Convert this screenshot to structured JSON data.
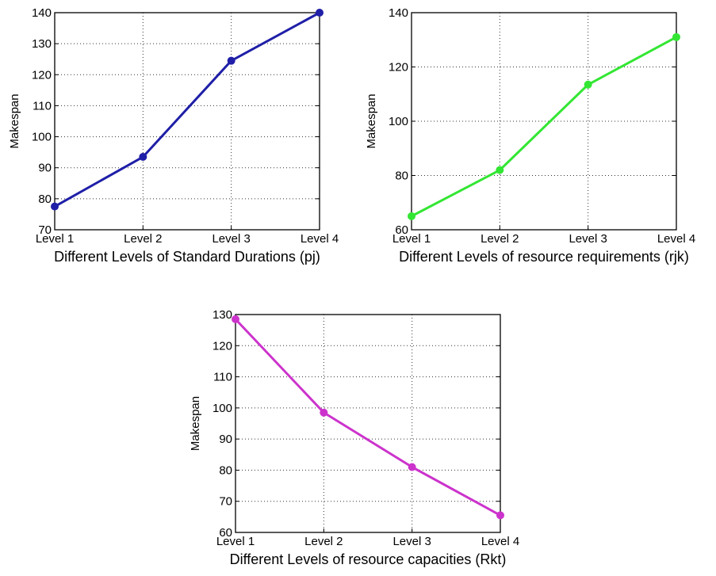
{
  "chart_data": [
    {
      "type": "line",
      "categories": [
        "Level 1",
        "Level 2",
        "Level 3",
        "Level 4"
      ],
      "series": [
        {
          "values": [
            77.5,
            93.5,
            124.5,
            140
          ],
          "color": "#1f1fa8"
        }
      ],
      "xlabel": "Different Levels of Standard Durations (pj)",
      "ylabel": "Makespan",
      "ylim": [
        70,
        140
      ],
      "yticks": [
        70,
        80,
        90,
        100,
        110,
        120,
        130,
        140
      ],
      "grid": true
    },
    {
      "type": "line",
      "categories": [
        "Level 1",
        "Level 2",
        "Level 3",
        "Level 4"
      ],
      "series": [
        {
          "values": [
            65,
            82,
            113.5,
            131
          ],
          "color": "#33e633"
        }
      ],
      "xlabel": "Different Levels of resource requirements (rjk)",
      "ylabel": "Makespan",
      "ylim": [
        60,
        140
      ],
      "yticks": [
        60,
        80,
        100,
        120,
        140
      ],
      "grid": true
    },
    {
      "type": "line",
      "categories": [
        "Level 1",
        "Level 2",
        "Level 3",
        "Level 4"
      ],
      "series": [
        {
          "values": [
            128.5,
            98.5,
            81,
            65.5
          ],
          "color": "#cc33cc"
        }
      ],
      "xlabel": "Different Levels of resource capacities (Rkt)",
      "ylabel": "Makespan",
      "ylim": [
        60,
        130
      ],
      "yticks": [
        60,
        70,
        80,
        90,
        100,
        110,
        120,
        130
      ],
      "grid": true
    }
  ]
}
